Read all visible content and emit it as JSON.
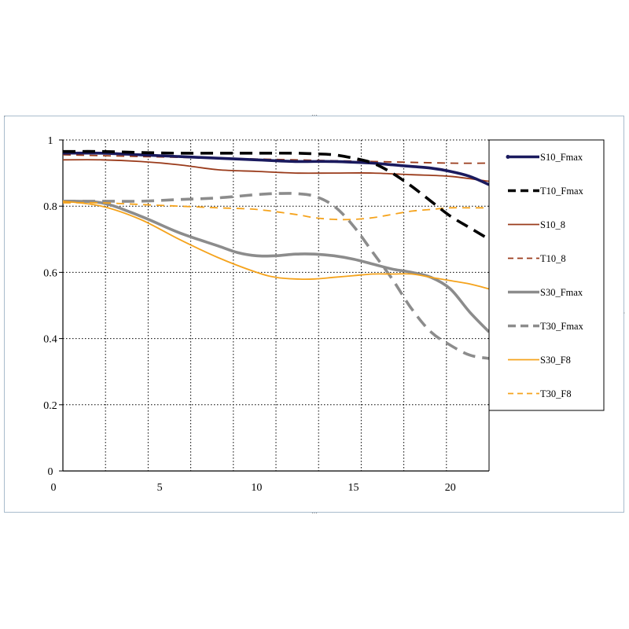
{
  "chart_data": {
    "type": "line",
    "title": "",
    "xlabel": "",
    "ylabel": "",
    "xlim": [
      0,
      22
    ],
    "ylim": [
      0,
      1
    ],
    "x_ticks": [
      0,
      5,
      10,
      15,
      20
    ],
    "y_ticks": [
      0,
      0.2,
      0.4,
      0.6,
      0.8,
      1
    ],
    "x_tick_labels": [
      "0",
      "5",
      "10",
      "15",
      "20"
    ],
    "y_tick_labels": [
      "0",
      "0.2",
      "0.4",
      "0.6",
      "0.8",
      "1"
    ],
    "grid": true,
    "legend_position": "right",
    "series": [
      {
        "name": "S10_Fmax",
        "color": "#1a1a5e",
        "dash": "solid",
        "width": "thick",
        "x": [
          0,
          2,
          4,
          6,
          8,
          10,
          12,
          14,
          16,
          17,
          18,
          19,
          20,
          21,
          22
        ],
        "y": [
          0.96,
          0.96,
          0.955,
          0.95,
          0.945,
          0.94,
          0.935,
          0.935,
          0.93,
          0.925,
          0.92,
          0.915,
          0.905,
          0.89,
          0.865
        ]
      },
      {
        "name": "T10_Fmax",
        "color": "#000000",
        "dash": "dashed",
        "width": "thick",
        "x": [
          0,
          2,
          4,
          6,
          8,
          10,
          12,
          13,
          14,
          15,
          16,
          17,
          18,
          19,
          20,
          21,
          22
        ],
        "y": [
          0.965,
          0.965,
          0.962,
          0.96,
          0.96,
          0.96,
          0.96,
          0.958,
          0.955,
          0.945,
          0.93,
          0.9,
          0.86,
          0.815,
          0.77,
          0.735,
          0.7
        ]
      },
      {
        "name": "S10_8",
        "color": "#9a3b1b",
        "dash": "solid",
        "width": "medium",
        "x": [
          0,
          2,
          4,
          6,
          8,
          10,
          12,
          14,
          16,
          18,
          20,
          22
        ],
        "y": [
          0.94,
          0.94,
          0.935,
          0.925,
          0.91,
          0.905,
          0.9,
          0.9,
          0.9,
          0.895,
          0.89,
          0.875
        ]
      },
      {
        "name": "T10_8",
        "color": "#9a3b1b",
        "dash": "dashed",
        "width": "medium",
        "x": [
          0,
          4,
          8,
          12,
          16,
          20,
          22
        ],
        "y": [
          0.955,
          0.95,
          0.945,
          0.94,
          0.935,
          0.93,
          0.93
        ]
      },
      {
        "name": "S30_Fmax",
        "color": "#8c8c8c",
        "dash": "solid",
        "width": "thick",
        "x": [
          0,
          2,
          4,
          6,
          8,
          9,
          10,
          11,
          12,
          13,
          14,
          15,
          16,
          17,
          18,
          19,
          20,
          21,
          22
        ],
        "y": [
          0.815,
          0.81,
          0.77,
          0.72,
          0.68,
          0.66,
          0.65,
          0.65,
          0.655,
          0.655,
          0.65,
          0.64,
          0.625,
          0.61,
          0.6,
          0.585,
          0.55,
          0.48,
          0.42
        ]
      },
      {
        "name": "T30_Fmax",
        "color": "#8c8c8c",
        "dash": "dashed",
        "width": "thick",
        "x": [
          0,
          2,
          4,
          6,
          8,
          10,
          11,
          12,
          13,
          14,
          15,
          16,
          17,
          18,
          19,
          20,
          21,
          22
        ],
        "y": [
          0.815,
          0.815,
          0.815,
          0.82,
          0.825,
          0.835,
          0.838,
          0.838,
          0.83,
          0.8,
          0.74,
          0.66,
          0.58,
          0.49,
          0.42,
          0.38,
          0.35,
          0.34
        ]
      },
      {
        "name": "S30_F8",
        "color": "#f5a31c",
        "dash": "solid",
        "width": "medium",
        "x": [
          0,
          2,
          4,
          6,
          8,
          10,
          11,
          12,
          13,
          14,
          15,
          16,
          17,
          18,
          19,
          20,
          21,
          22
        ],
        "y": [
          0.815,
          0.8,
          0.76,
          0.7,
          0.645,
          0.6,
          0.585,
          0.58,
          0.58,
          0.585,
          0.59,
          0.595,
          0.595,
          0.595,
          0.585,
          0.575,
          0.565,
          0.55
        ]
      },
      {
        "name": "T30_F8",
        "color": "#f5a31c",
        "dash": "dashed",
        "width": "medium",
        "x": [
          0,
          2,
          4,
          6,
          8,
          10,
          12,
          13,
          14,
          15,
          16,
          17,
          18,
          19,
          20,
          21,
          22
        ],
        "y": [
          0.81,
          0.81,
          0.805,
          0.8,
          0.795,
          0.79,
          0.775,
          0.765,
          0.76,
          0.76,
          0.765,
          0.775,
          0.785,
          0.79,
          0.795,
          0.795,
          0.795
        ]
      }
    ]
  }
}
